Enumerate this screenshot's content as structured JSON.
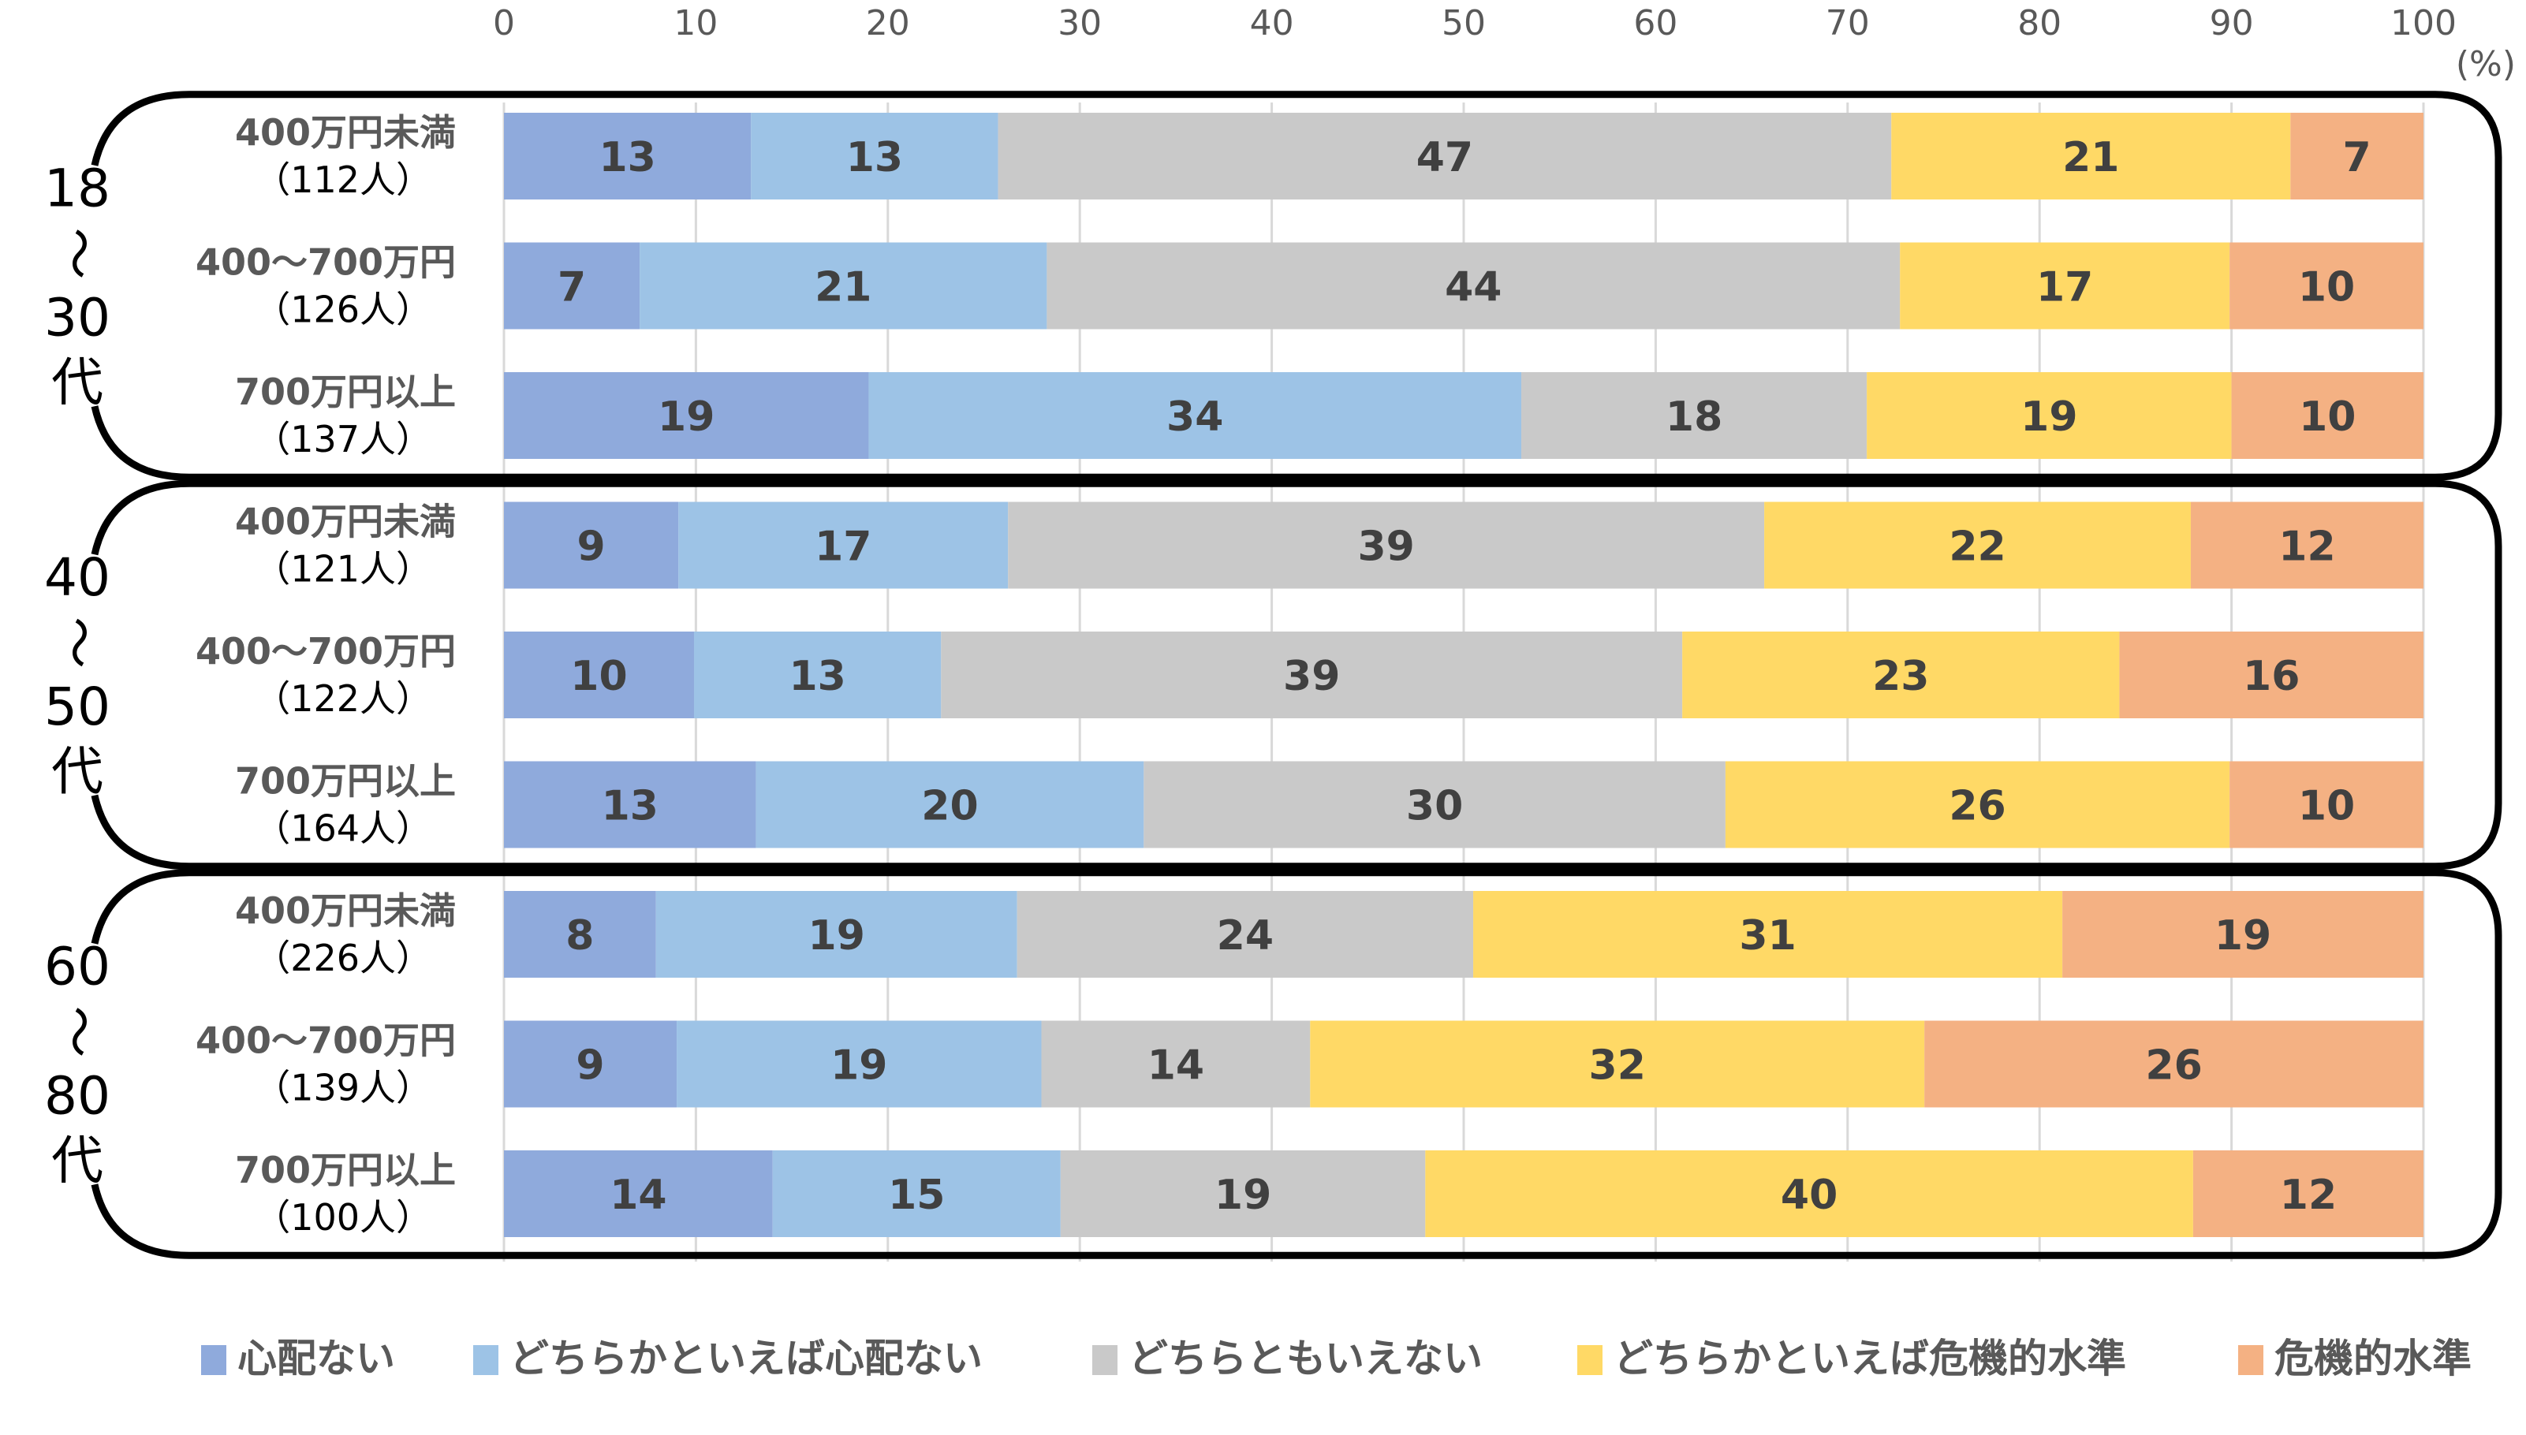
{
  "chart_data": {
    "type": "bar",
    "orientation": "horizontal",
    "stacked": "percent",
    "title": "",
    "xlabel": "",
    "ylabel": "",
    "unit_label": "(%)",
    "xlim": [
      0,
      100
    ],
    "xticks": [
      0,
      10,
      20,
      30,
      40,
      50,
      60,
      70,
      80,
      90,
      100
    ],
    "grid": true,
    "legend_position": "bottom",
    "series": [
      {
        "name": "心配ない",
        "color": "#8FAADC"
      },
      {
        "name": "どちらかといえば心配ない",
        "color": "#9DC3E6"
      },
      {
        "name": "どちらともいえない",
        "color": "#C9C9C9"
      },
      {
        "name": "どちらかといえば危機的水準",
        "color": "#FFD966"
      },
      {
        "name": "危機的水準",
        "color": "#F4B183"
      }
    ],
    "groups": [
      {
        "label_lines": [
          "18",
          "〜",
          "30",
          "代"
        ],
        "rows": [
          {
            "category": "400万円未満",
            "n_label": "（112人）",
            "values": [
              13,
              13,
              47,
              21,
              7
            ]
          },
          {
            "category": "400〜700万円",
            "n_label": "（126人）",
            "values": [
              7,
              21,
              44,
              17,
              10
            ]
          },
          {
            "category": "700万円以上",
            "n_label": "（137人）",
            "values": [
              19,
              34,
              18,
              19,
              10
            ]
          }
        ]
      },
      {
        "label_lines": [
          "40",
          "〜",
          "50",
          "代"
        ],
        "rows": [
          {
            "category": "400万円未満",
            "n_label": "（121人）",
            "values": [
              9,
              17,
              39,
              22,
              12
            ]
          },
          {
            "category": "400〜700万円",
            "n_label": "（122人）",
            "values": [
              10,
              13,
              39,
              23,
              16
            ]
          },
          {
            "category": "700万円以上",
            "n_label": "（164人）",
            "values": [
              13,
              20,
              30,
              26,
              10
            ]
          }
        ]
      },
      {
        "label_lines": [
          "60",
          "〜",
          "80",
          "代"
        ],
        "rows": [
          {
            "category": "400万円未満",
            "n_label": "（226人）",
            "values": [
              8,
              19,
              24,
              31,
              19
            ]
          },
          {
            "category": "400〜700万円",
            "n_label": "（139人）",
            "values": [
              9,
              19,
              14,
              32,
              26
            ]
          },
          {
            "category": "700万円以上",
            "n_label": "（100人）",
            "values": [
              14,
              15,
              19,
              40,
              12
            ]
          }
        ]
      }
    ]
  }
}
